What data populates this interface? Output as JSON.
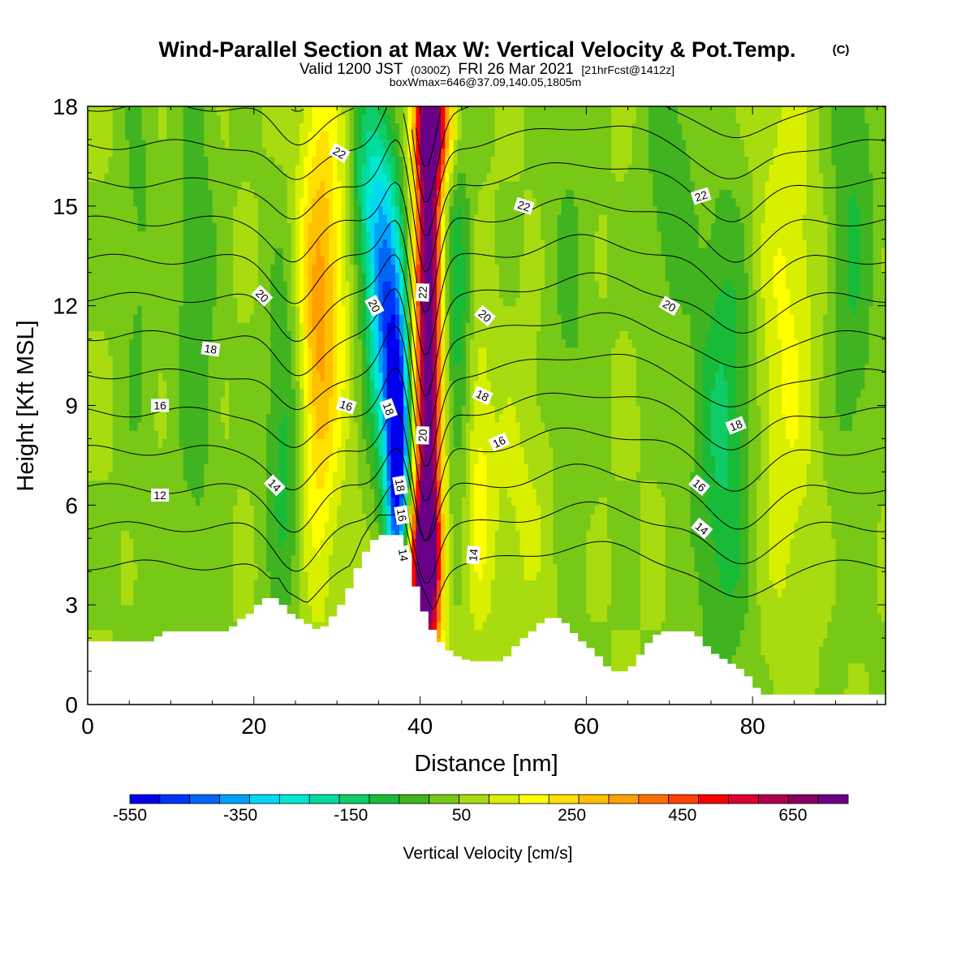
{
  "title": {
    "main": "Wind-Parallel Section at Max W: Vertical Velocity & Pot.Temp.",
    "copyright": "(C)",
    "valid_prefix": "Valid 1200 JST",
    "utc": "(0300Z)",
    "date": "FRI 26 Mar 2021",
    "forecast": "[21hrFcst@1412z]",
    "box": "boxWmax=646@37.09,140.05,1805m"
  },
  "chart_data": {
    "type": "heatmap",
    "xlabel": "Distance [nm]",
    "ylabel": "Height [Kft MSL]",
    "xlim": [
      0,
      96
    ],
    "ylim": [
      0,
      18
    ],
    "x_ticks": [
      0,
      20,
      40,
      60,
      80
    ],
    "y_ticks": [
      0,
      3,
      6,
      9,
      12,
      15,
      18
    ],
    "x_tick_labels": [
      "0",
      "20",
      "40",
      "60",
      "80"
    ],
    "y_tick_labels": [
      "0",
      "3",
      "6",
      "9",
      "12",
      "15",
      "18"
    ],
    "grid": false,
    "colorbar": {
      "title": "Vertical Velocity [cm/s]",
      "position": "bottom",
      "labels": [
        "-550",
        "-350",
        "-150",
        "50",
        "250",
        "450",
        "650"
      ],
      "label_values": [
        -550,
        -350,
        -150,
        50,
        250,
        450,
        650
      ],
      "min": -550,
      "max": 750,
      "step": 50,
      "colors": [
        "#0000ee",
        "#0033f5",
        "#0066f8",
        "#00a0f8",
        "#00d8f5",
        "#00e8d0",
        "#00dca0",
        "#10cc68",
        "#18bb38",
        "#40b420",
        "#78c818",
        "#a8dc10",
        "#d8f000",
        "#ffff00",
        "#ffe000",
        "#ffc000",
        "#ffa000",
        "#ff7000",
        "#ff4000",
        "#ff0000",
        "#dd0030",
        "#b0004a",
        "#880060",
        "#6a0088"
      ]
    },
    "background_w": 0,
    "velocity_features": [
      {
        "x": 41.0,
        "y": 11.0,
        "w": 700,
        "sx": 1.1,
        "sy": 7.0
      },
      {
        "x": 40.4,
        "y": 4.2,
        "w": 480,
        "sx": 1.4,
        "sy": 1.6
      },
      {
        "x": 41.6,
        "y": 17.4,
        "w": 420,
        "sx": 1.6,
        "sy": 1.2
      },
      {
        "x": 37.3,
        "y": 7.5,
        "w": -560,
        "sx": 1.0,
        "sy": 3.0
      },
      {
        "x": 35.8,
        "y": 11.5,
        "w": -350,
        "sx": 1.5,
        "sy": 3.0
      },
      {
        "x": 34.0,
        "y": 15.5,
        "w": -220,
        "sx": 2.0,
        "sy": 2.5
      },
      {
        "x": 27.5,
        "y": 11.0,
        "w": 240,
        "sx": 1.8,
        "sy": 5.0
      },
      {
        "x": 30.0,
        "y": 14.0,
        "w": 100,
        "sx": 2.0,
        "sy": 4.0
      },
      {
        "x": 24.0,
        "y": 8.0,
        "w": -140,
        "sx": 1.8,
        "sy": 4.0
      },
      {
        "x": 47.0,
        "y": 7.0,
        "w": 110,
        "sx": 1.2,
        "sy": 3.5
      },
      {
        "x": 44.5,
        "y": 12.0,
        "w": -140,
        "sx": 1.2,
        "sy": 4.0
      },
      {
        "x": 84.0,
        "y": 11.0,
        "w": 110,
        "sx": 2.5,
        "sy": 6.0
      },
      {
        "x": 76.5,
        "y": 8.0,
        "w": -160,
        "sx": 2.5,
        "sy": 5.0
      },
      {
        "x": 70.0,
        "y": 16.0,
        "w": -90,
        "sx": 2.0,
        "sy": 3.0
      },
      {
        "x": 13.0,
        "y": 12.0,
        "w": -90,
        "sx": 1.8,
        "sy": 6.0
      },
      {
        "x": 6.0,
        "y": 14.0,
        "w": -60,
        "sx": 1.5,
        "sy": 6.0
      },
      {
        "x": 92.0,
        "y": 14.0,
        "w": -100,
        "sx": 2.0,
        "sy": 6.0
      },
      {
        "x": 58.0,
        "y": 12.0,
        "w": -60,
        "sx": 2.0,
        "sy": 5.0
      },
      {
        "x": 52.0,
        "y": 6.0,
        "w": 60,
        "sx": 3.0,
        "sy": 3.0
      }
    ],
    "terrain": [
      [
        0,
        1.9
      ],
      [
        8,
        1.9
      ],
      [
        9,
        2.2
      ],
      [
        17,
        2.2
      ],
      [
        18,
        2.5
      ],
      [
        20,
        2.8
      ],
      [
        21,
        3.2
      ],
      [
        23,
        3.2
      ],
      [
        24,
        2.8
      ],
      [
        26,
        2.5
      ],
      [
        28,
        2.2
      ],
      [
        29,
        2.5
      ],
      [
        30,
        2.8
      ],
      [
        31,
        3.2
      ],
      [
        32,
        3.8
      ],
      [
        33,
        4.4
      ],
      [
        34,
        4.8
      ],
      [
        35,
        5.1
      ],
      [
        38,
        5.1
      ],
      [
        39,
        4.0
      ],
      [
        40,
        3.1
      ],
      [
        41,
        2.5
      ],
      [
        42,
        2.0
      ],
      [
        44,
        1.5
      ],
      [
        46,
        1.3
      ],
      [
        50,
        1.3
      ],
      [
        51,
        1.6
      ],
      [
        52,
        1.9
      ],
      [
        54,
        2.3
      ],
      [
        55,
        2.6
      ],
      [
        57,
        2.6
      ],
      [
        58,
        2.3
      ],
      [
        59,
        2.0
      ],
      [
        61,
        1.6
      ],
      [
        62,
        1.3
      ],
      [
        63,
        1.0
      ],
      [
        65,
        1.0
      ],
      [
        66,
        1.3
      ],
      [
        67,
        1.7
      ],
      [
        68,
        2.0
      ],
      [
        69,
        2.2
      ],
      [
        73,
        2.2
      ],
      [
        74,
        1.9
      ],
      [
        75,
        1.6
      ],
      [
        77,
        1.3
      ],
      [
        79,
        1.0
      ],
      [
        80,
        0.7
      ],
      [
        81,
        0.3
      ],
      [
        96,
        0.3
      ]
    ],
    "isentrope_levels": [
      11,
      12,
      13,
      14,
      15,
      16,
      17,
      18,
      19,
      20,
      21,
      22,
      23,
      24
    ],
    "isentrope_label_values": [
      12,
      14,
      16,
      18,
      20,
      22
    ],
    "isentrope_labels": [
      {
        "text": "22",
        "x": 30.3,
        "y": 16.6,
        "angle": 30
      },
      {
        "text": "22",
        "x": 52.5,
        "y": 15.0,
        "angle": 18
      },
      {
        "text": "22",
        "x": 73.8,
        "y": 15.3,
        "angle": -18
      },
      {
        "text": "20",
        "x": 21.0,
        "y": 12.3,
        "angle": 45
      },
      {
        "text": "20",
        "x": 34.5,
        "y": 12.0,
        "angle": 62
      },
      {
        "text": "22",
        "x": 40.3,
        "y": 12.4,
        "angle": -88
      },
      {
        "text": "20",
        "x": 47.8,
        "y": 11.7,
        "angle": 40
      },
      {
        "text": "20",
        "x": 70.0,
        "y": 12.0,
        "angle": 30
      },
      {
        "text": "18",
        "x": 14.8,
        "y": 10.7,
        "angle": 8
      },
      {
        "text": "16",
        "x": 8.7,
        "y": 9.0,
        "angle": 0
      },
      {
        "text": "16",
        "x": 31.1,
        "y": 9.0,
        "angle": 18
      },
      {
        "text": "18",
        "x": 36.2,
        "y": 8.9,
        "angle": 70
      },
      {
        "text": "18",
        "x": 47.5,
        "y": 9.3,
        "angle": 25
      },
      {
        "text": "20",
        "x": 40.3,
        "y": 8.1,
        "angle": -88
      },
      {
        "text": "16",
        "x": 49.5,
        "y": 7.9,
        "angle": -25
      },
      {
        "text": "18",
        "x": 78.0,
        "y": 8.4,
        "angle": -22
      },
      {
        "text": "14",
        "x": 22.5,
        "y": 6.6,
        "angle": 45
      },
      {
        "text": "12",
        "x": 8.7,
        "y": 6.3,
        "angle": 0
      },
      {
        "text": "18",
        "x": 37.6,
        "y": 6.6,
        "angle": 80
      },
      {
        "text": "16",
        "x": 37.8,
        "y": 5.7,
        "angle": 80
      },
      {
        "text": "14",
        "x": 38.0,
        "y": 4.5,
        "angle": 80
      },
      {
        "text": "14",
        "x": 46.4,
        "y": 4.5,
        "angle": -85
      },
      {
        "text": "16",
        "x": 73.6,
        "y": 6.6,
        "angle": 40
      },
      {
        "text": "14",
        "x": 73.9,
        "y": 5.3,
        "angle": 40
      }
    ]
  }
}
